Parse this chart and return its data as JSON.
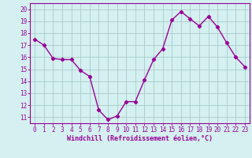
{
  "x": [
    0,
    1,
    2,
    3,
    4,
    5,
    6,
    7,
    8,
    9,
    10,
    11,
    12,
    13,
    14,
    15,
    16,
    17,
    18,
    19,
    20,
    21,
    22,
    23
  ],
  "y": [
    17.5,
    17.0,
    15.9,
    15.8,
    15.8,
    14.9,
    14.4,
    11.6,
    10.8,
    11.1,
    12.3,
    12.3,
    14.1,
    15.8,
    16.7,
    19.1,
    19.8,
    19.2,
    18.6,
    19.4,
    18.5,
    17.2,
    16.0,
    15.2
  ],
  "line_color": "#990099",
  "marker": "D",
  "marker_size": 2.2,
  "linewidth": 1.0,
  "background_color": "#d4f0f0",
  "grid_color": "#aacccc",
  "xlabel": "Windchill (Refroidissement éolien,°C)",
  "xlabel_color": "#990099",
  "xlabel_fontsize": 6.0,
  "tick_color": "#990099",
  "tick_fontsize": 5.5,
  "ylim": [
    10.5,
    20.5
  ],
  "xlim": [
    -0.5,
    23.5
  ],
  "yticks": [
    11,
    12,
    13,
    14,
    15,
    16,
    17,
    18,
    19,
    20
  ],
  "xticks": [
    0,
    1,
    2,
    3,
    4,
    5,
    6,
    7,
    8,
    9,
    10,
    11,
    12,
    13,
    14,
    15,
    16,
    17,
    18,
    19,
    20,
    21,
    22,
    23
  ]
}
